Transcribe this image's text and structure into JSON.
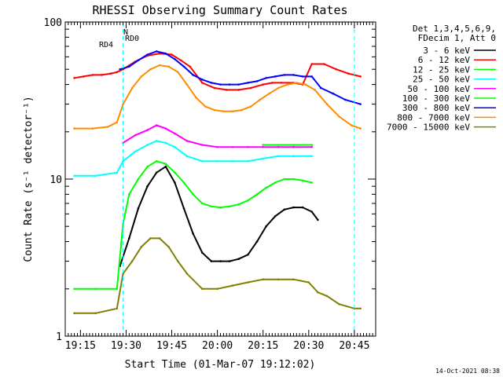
{
  "chart_data": {
    "type": "line",
    "title": "RHESSI Observing Summary Count Rates",
    "xlabel": "Start Time (01-Mar-07 19:12:02)",
    "ylabel": "Count Rate (s⁻¹ detector⁻¹)",
    "xlim": [
      "19:10",
      "20:52"
    ],
    "x_ticks": [
      "19:15",
      "19:30",
      "19:45",
      "20:00",
      "20:15",
      "20:30",
      "20:45"
    ],
    "y_scale": "log",
    "ylim": [
      1,
      100
    ],
    "y_tick_labels": [
      "1",
      "10",
      "100"
    ],
    "grid": false,
    "legend_header": [
      "Det 1,3,4,5,6,9,",
      "FDecim 1, Att 0"
    ],
    "legend_position": "top-right outside",
    "annotations": {
      "N": "N",
      "RD0": "RD0",
      "RD4": "RD4"
    },
    "dashed_vlines": [
      "19:29",
      "20:45"
    ],
    "series": [
      {
        "name": "3 - 6 keV",
        "color": "#000000",
        "x": [
          "19:28",
          "19:31",
          "19:34",
          "19:37",
          "19:40",
          "19:43",
          "19:46",
          "19:49",
          "19:52",
          "19:55",
          "19:58",
          "20:01",
          "20:04",
          "20:07",
          "20:10",
          "20:13",
          "20:16",
          "20:19",
          "20:22",
          "20:25",
          "20:28",
          "20:31",
          "20:33"
        ],
        "values": [
          2.8,
          4.2,
          6.5,
          9,
          11,
          12,
          9.5,
          6.5,
          4.5,
          3.4,
          3.0,
          3.0,
          3.0,
          3.1,
          3.3,
          4.0,
          5.0,
          5.8,
          6.4,
          6.6,
          6.6,
          6.2,
          5.5
        ]
      },
      {
        "name": "6 - 12 keV",
        "color": "#ff0000",
        "x": [
          "19:13",
          "19:16",
          "19:19",
          "19:22",
          "19:25",
          "19:27",
          "19:29",
          "19:33",
          "19:37",
          "19:41",
          "19:45",
          "19:48",
          "19:51",
          "19:55",
          "19:59",
          "20:03",
          "20:07",
          "20:11",
          "20:15",
          "20:18",
          "20:21",
          "20:25",
          "20:28",
          "20:31",
          "20:35",
          "20:39",
          "20:43",
          "20:47"
        ],
        "values": [
          44,
          45,
          46,
          46,
          47,
          48,
          50,
          56,
          61,
          63,
          62,
          57,
          52,
          41,
          38,
          37,
          37,
          38,
          40,
          41,
          41,
          41,
          40,
          54,
          54,
          50,
          47,
          45
        ]
      },
      {
        "name": "12 - 25 keV",
        "color": "#00ff00",
        "x": [
          "19:13",
          "19:20",
          "19:27",
          "19:29",
          "19:31",
          "19:34",
          "19:37",
          "19:40",
          "19:43",
          "19:46",
          "19:49",
          "19:52",
          "19:55",
          "19:58",
          "20:01",
          "20:04",
          "20:07",
          "20:10",
          "20:13",
          "20:16",
          "20:19",
          "20:22",
          "20:25",
          "20:28",
          "20:31"
        ],
        "values": [
          2.0,
          2.0,
          2.0,
          5.2,
          8,
          10,
          12,
          13,
          12.5,
          11,
          9.5,
          8,
          7,
          6.7,
          6.6,
          6.7,
          6.9,
          7.3,
          8.0,
          8.8,
          9.5,
          10,
          10,
          9.8,
          9.5
        ]
      },
      {
        "name": "25 - 50 keV",
        "color": "#00ffff",
        "x": [
          "19:13",
          "19:20",
          "19:27",
          "19:29",
          "19:33",
          "19:37",
          "19:40",
          "19:43",
          "19:46",
          "19:50",
          "19:55",
          "20:00",
          "20:05",
          "20:10",
          "20:15",
          "20:20",
          "20:25",
          "20:31"
        ],
        "values": [
          10.5,
          10.5,
          11,
          13,
          15,
          16.5,
          17.5,
          17,
          16,
          14,
          13,
          13,
          13,
          13,
          13.5,
          14,
          14,
          14
        ]
      },
      {
        "name": "50 - 100 keV",
        "color": "#ff00ff",
        "x": [
          "19:29",
          "19:33",
          "19:37",
          "19:40",
          "19:43",
          "19:46",
          "19:50",
          "19:55",
          "20:00",
          "20:05",
          "20:10",
          "20:15",
          "20:20",
          "20:25",
          "20:31"
        ],
        "values": [
          17,
          19,
          20.5,
          22,
          21,
          19.5,
          17.5,
          16.5,
          16,
          16,
          16,
          16,
          16,
          16,
          16
        ]
      },
      {
        "name": "100 - 300 keV",
        "color": "#00ff00",
        "x": [
          "20:15",
          "20:20",
          "20:25",
          "20:31"
        ],
        "values": [
          16.5,
          16.5,
          16.5,
          16.5
        ]
      },
      {
        "name": "300 - 800 keV",
        "color": "#0000ff",
        "x": [
          "19:28",
          "19:31",
          "19:34",
          "19:37",
          "19:40",
          "19:43",
          "19:46",
          "19:49",
          "19:52",
          "19:55",
          "19:58",
          "20:01",
          "20:04",
          "20:07",
          "20:10",
          "20:13",
          "20:16",
          "20:19",
          "20:22",
          "20:25",
          "20:28",
          "20:31",
          "20:34",
          "20:38",
          "20:42",
          "20:47"
        ],
        "values": [
          50,
          52,
          57,
          62,
          65,
          63,
          58,
          52,
          46,
          43,
          41,
          40,
          40,
          40,
          41,
          42,
          44,
          45,
          46,
          46,
          45,
          45,
          38,
          35,
          32,
          30
        ]
      },
      {
        "name": "800 - 7000 keV",
        "color": "#ff8c00",
        "x": [
          "19:13",
          "19:19",
          "19:24",
          "19:27",
          "19:29",
          "19:32",
          "19:35",
          "19:38",
          "19:41",
          "19:44",
          "19:47",
          "19:50",
          "19:53",
          "19:56",
          "19:59",
          "20:02",
          "20:05",
          "20:08",
          "20:11",
          "20:14",
          "20:17",
          "20:20",
          "20:23",
          "20:26",
          "20:29",
          "20:32",
          "20:36",
          "20:40",
          "20:44",
          "20:47"
        ],
        "values": [
          21,
          21,
          21.5,
          23,
          30,
          38,
          45,
          50,
          53,
          52,
          48,
          40,
          33,
          29,
          27.5,
          27,
          27,
          27.5,
          29,
          32,
          35,
          38,
          40,
          41,
          40,
          37,
          30,
          25,
          22,
          21
        ]
      },
      {
        "name": "7000 - 15000 keV",
        "color": "#808000",
        "x": [
          "19:13",
          "19:20",
          "19:27",
          "19:29",
          "19:32",
          "19:35",
          "19:38",
          "19:41",
          "19:44",
          "19:47",
          "19:50",
          "19:55",
          "20:00",
          "20:05",
          "20:10",
          "20:15",
          "20:20",
          "20:25",
          "20:30",
          "20:33",
          "20:36",
          "20:40",
          "20:45",
          "20:47"
        ],
        "values": [
          1.4,
          1.4,
          1.5,
          2.5,
          3.0,
          3.7,
          4.2,
          4.2,
          3.7,
          3.0,
          2.5,
          2.0,
          2.0,
          2.1,
          2.2,
          2.3,
          2.3,
          2.3,
          2.2,
          1.9,
          1.8,
          1.6,
          1.5,
          1.5
        ]
      }
    ]
  },
  "footer": {
    "date_stamp": "14-Oct-2021 08:38"
  }
}
